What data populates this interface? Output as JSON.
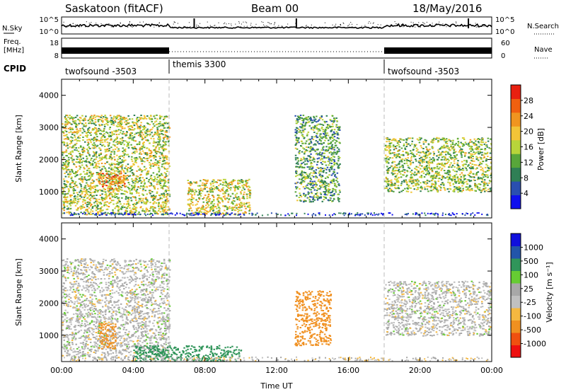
{
  "header": {
    "station": "Saskatoon (fitACF)",
    "beam": "Beam 00",
    "date": "18/May/2016"
  },
  "noise_panel": {
    "left_label": "N.Sky",
    "right_label": "N.Search",
    "left_ticks": [
      "10^5",
      "10^0"
    ],
    "right_ticks": [
      "10^5",
      "10^0"
    ],
    "scale": "log"
  },
  "freq_panel": {
    "left_label_line1": "Freq.",
    "left_label_line2": "[MHz]",
    "right_label": "Nave",
    "left_ticks": [
      "18",
      "8"
    ],
    "right_ticks": [
      "60",
      "0"
    ]
  },
  "cpid": {
    "label": "CPID",
    "segments": [
      {
        "name": "twofsound -3503",
        "start_hour": 0,
        "end_hour": 6
      },
      {
        "name": "themis 3300",
        "start_hour": 6,
        "end_hour": 18
      },
      {
        "name": "twofsound -3503",
        "start_hour": 18,
        "end_hour": 24
      }
    ]
  },
  "colors": {
    "power": [
      "#1010ee",
      "#2a4fb0",
      "#2f7f55",
      "#58a63a",
      "#b8d43a",
      "#f2c438",
      "#f09520",
      "#f06010",
      "#e82010"
    ],
    "velocity": [
      "#ee1010",
      "#f05010",
      "#f09020",
      "#f5b840",
      "#c0c0c0",
      "#a8a8a8",
      "#66cc33",
      "#30955a",
      "#2255aa",
      "#1010dd"
    ]
  },
  "chart_data": [
    {
      "type": "heatmap",
      "panel": "power",
      "xlabel": "",
      "ylabel": "Slant Range [km]",
      "xlim": [
        0,
        24
      ],
      "ylim": [
        180,
        4500
      ],
      "yticks": [
        "1000",
        "2000",
        "3000",
        "4000"
      ],
      "colorbar_label": "Power [dB]",
      "colorbar_ticks": [
        "4",
        "8",
        "12",
        "16",
        "20",
        "24",
        "28"
      ],
      "colorbar_range": [
        0,
        30
      ],
      "features": [
        {
          "t": [
            0.0,
            6.0
          ],
          "r": [
            300,
            3400
          ],
          "level": 0.5
        },
        {
          "t": [
            2.0,
            3.5
          ],
          "r": [
            1100,
            1600
          ],
          "level": 0.8
        },
        {
          "t": [
            7.0,
            10.5
          ],
          "r": [
            300,
            1400
          ],
          "level": 0.55
        },
        {
          "t": [
            13.0,
            15.5
          ],
          "r": [
            700,
            3400
          ],
          "level": 0.35
        },
        {
          "t": [
            18.0,
            24.0
          ],
          "r": [
            1000,
            2700
          ],
          "level": 0.45
        }
      ]
    },
    {
      "type": "heatmap",
      "panel": "velocity",
      "xlabel": "Time UT",
      "ylabel": "Slant Range [km]",
      "xlim": [
        0,
        24
      ],
      "ylim": [
        180,
        4500
      ],
      "yticks": [
        "1000",
        "2000",
        "3000",
        "4000"
      ],
      "xticks": [
        "00:00",
        "04:00",
        "08:00",
        "12:00",
        "16:00",
        "20:00",
        "00:00"
      ],
      "colorbar_label": "Velocity [m s⁻¹]",
      "colorbar_ticks": [
        "-1000",
        "-500",
        "-100",
        "-25",
        "25",
        "100",
        "500",
        "1000"
      ],
      "features": [
        {
          "t": [
            0.0,
            6.0
          ],
          "r": [
            300,
            3400
          ],
          "velocity": 0
        },
        {
          "t": [
            2.0,
            3.0
          ],
          "r": [
            600,
            1400
          ],
          "velocity": -300
        },
        {
          "t": [
            4.0,
            10.0
          ],
          "r": [
            200,
            700
          ],
          "velocity": 150
        },
        {
          "t": [
            13.0,
            15.0
          ],
          "r": [
            700,
            2400
          ],
          "velocity": -300
        },
        {
          "t": [
            18.0,
            24.0
          ],
          "r": [
            1000,
            2700
          ],
          "velocity": 0
        }
      ]
    }
  ]
}
